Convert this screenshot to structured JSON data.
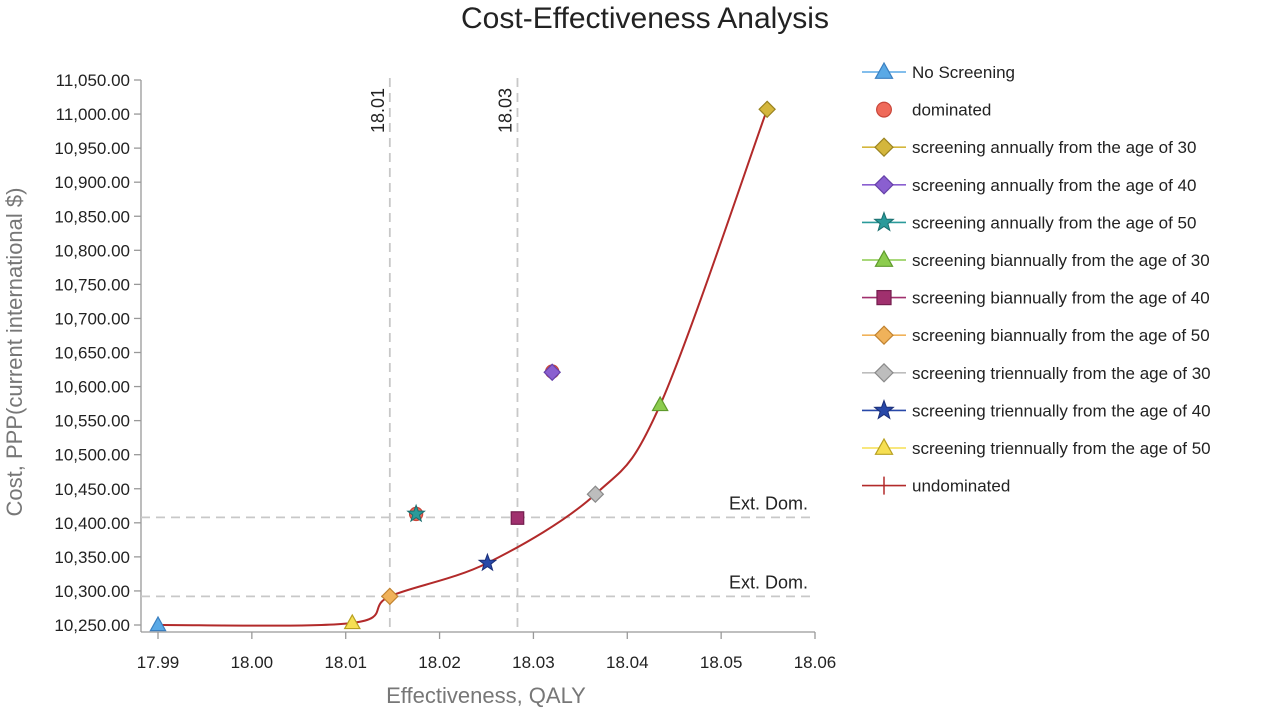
{
  "chart_data": {
    "type": "scatter",
    "title": "Cost-Effectiveness Analysis",
    "xlabel": "Effectiveness, QALY",
    "ylabel": "Cost, PPP(current international $)",
    "xlim": [
      17.99,
      18.06
    ],
    "ylim": [
      10225,
      11050
    ],
    "xticks": [
      "17.99",
      "18.00",
      "18.01",
      "18.02",
      "18.03",
      "18.04",
      "18.05",
      "18.06"
    ],
    "yticks": [
      "10,250.00",
      "10,300.00",
      "10,350.00",
      "10,400.00",
      "10,450.00",
      "10,500.00",
      "10,550.00",
      "10,600.00",
      "10,650.00",
      "10,700.00",
      "10,750.00",
      "10,800.00",
      "10,850.00",
      "10,900.00",
      "10,950.00",
      "11,000.00",
      "11,050.00"
    ],
    "vertical_refs": [
      {
        "x": 18.0147,
        "label": "18.01"
      },
      {
        "x": 18.0283,
        "label": "18.03"
      }
    ],
    "horizontal_refs": [
      {
        "y": 10408,
        "label": "Ext. Dom."
      },
      {
        "y": 10292,
        "label": "Ext. Dom."
      }
    ],
    "series": [
      {
        "name": "No Screening",
        "symbol": "triangle",
        "color": "#5aa9e6",
        "stroke": "#3a7fc0",
        "points": [
          [
            17.99,
            10250
          ]
        ]
      },
      {
        "name": "dominated",
        "symbol": "circle",
        "color": "#ef6a5a",
        "stroke": "#c8463a",
        "points": [
          [
            18.0175,
            10413
          ],
          [
            18.032,
            10622
          ]
        ]
      },
      {
        "name": "screening annually from the age of 30",
        "symbol": "diamond",
        "color": "#d4b63c",
        "stroke": "#9a8320",
        "points": [
          [
            18.0549,
            11007
          ]
        ]
      },
      {
        "name": "screening annually from the age of 40",
        "symbol": "diamond",
        "color": "#8a5fd0",
        "stroke": "#6540a8",
        "points": [
          [
            18.032,
            10621
          ]
        ]
      },
      {
        "name": "screening annually from the age of 50",
        "symbol": "star",
        "color": "#2a9a9a",
        "stroke": "#1a6e6e",
        "points": [
          [
            18.0175,
            10413
          ]
        ]
      },
      {
        "name": "screening biannually from the age of 30",
        "symbol": "triangle",
        "color": "#8ccc4e",
        "stroke": "#5e9a2c",
        "points": [
          [
            18.0435,
            10573
          ]
        ]
      },
      {
        "name": "screening biannually from the age of 40",
        "symbol": "square",
        "color": "#a0306e",
        "stroke": "#741e4e",
        "points": [
          [
            18.0283,
            10407
          ]
        ]
      },
      {
        "name": "screening biannually from the age of 50",
        "symbol": "diamond",
        "color": "#f0b25a",
        "stroke": "#c08230",
        "points": [
          [
            18.0147,
            10292
          ]
        ]
      },
      {
        "name": "screening triennually from the age of 30",
        "symbol": "diamond",
        "color": "#bdbdbd",
        "stroke": "#8a8a8a",
        "points": [
          [
            18.0366,
            10442
          ]
        ]
      },
      {
        "name": "screening triennually from the age of 40",
        "symbol": "star",
        "color": "#2848a8",
        "stroke": "#1a2e78",
        "points": [
          [
            18.0251,
            10341
          ]
        ]
      },
      {
        "name": "screening triennually from the age of 50",
        "symbol": "triangle",
        "color": "#f6df52",
        "stroke": "#b8a020",
        "points": [
          [
            18.0107,
            10253
          ]
        ]
      },
      {
        "name": "undominated",
        "symbol": "plus-line",
        "color": "#b22a2a",
        "stroke": "#b22a2a",
        "points": []
      }
    ],
    "frontier": {
      "name": "undominated",
      "color": "#b22a2a",
      "points": [
        [
          17.99,
          10250
        ],
        [
          18.0107,
          10253
        ],
        [
          18.0147,
          10292
        ],
        [
          18.0251,
          10341
        ],
        [
          18.0366,
          10442
        ],
        [
          18.0435,
          10573
        ],
        [
          18.0549,
          11007
        ]
      ]
    },
    "legend_position": "right"
  }
}
